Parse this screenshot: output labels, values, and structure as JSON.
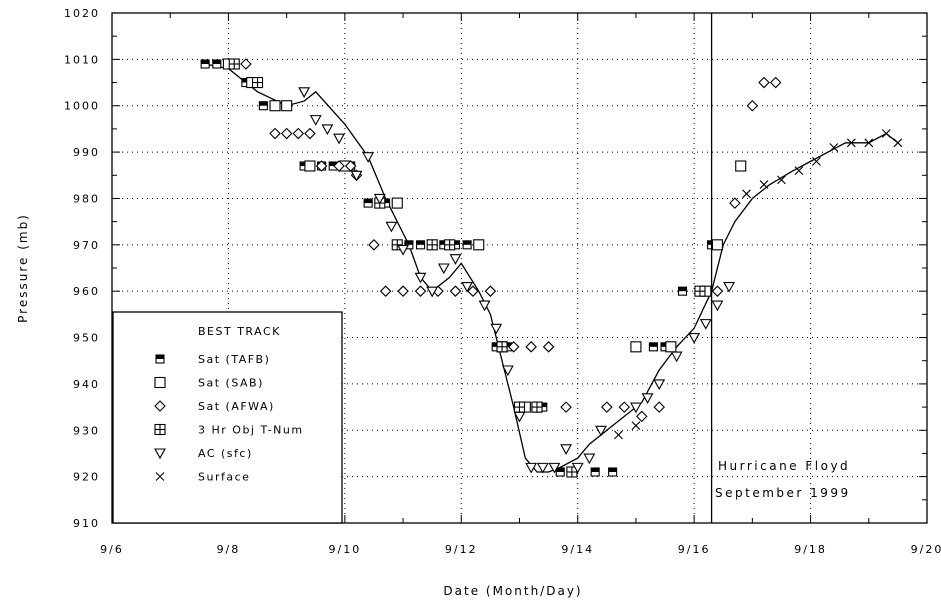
{
  "chart_data": {
    "type": "scatter",
    "title": "",
    "xlabel": "Date (Month/Day)",
    "ylabel": "Pressure (mb)",
    "x_ticks": [
      "9/6",
      "9/8",
      "9/10",
      "9/12",
      "9/14",
      "9/16",
      "9/18",
      "9/20"
    ],
    "y_ticks": [
      910,
      920,
      930,
      940,
      950,
      960,
      970,
      980,
      990,
      1000,
      1010,
      1020
    ],
    "xlim": [
      6,
      20
    ],
    "ylim": [
      910,
      1020
    ],
    "grid": true,
    "legend_position": "bottom-left",
    "legend_title": "BEST TRACK",
    "vertical_line_x": 16.3,
    "annotation": [
      "Hurricane Floyd",
      "September 1999"
    ],
    "series": [
      {
        "name": "BEST TRACK",
        "marker": "line",
        "x": [
          7.6,
          8.0,
          8.5,
          9.0,
          9.3,
          9.5,
          10.0,
          10.4,
          10.7,
          10.9,
          11.1,
          11.3,
          11.5,
          11.8,
          12.0,
          12.3,
          12.5,
          12.7,
          12.9,
          13.1,
          13.3,
          13.5,
          13.7,
          14.0,
          14.2,
          14.5,
          14.8,
          15.1,
          15.4,
          15.7,
          16.0,
          16.3,
          16.5,
          16.7,
          17.0,
          17.3,
          17.7,
          18.0,
          18.3,
          18.6,
          19.0,
          19.3,
          19.5
        ],
        "y": [
          1009,
          1008,
          1003,
          1000,
          1001,
          1003,
          996,
          989,
          980,
          975,
          970,
          963,
          960,
          963,
          966,
          960,
          955,
          945,
          935,
          924,
          921,
          921,
          922,
          924,
          927,
          930,
          933,
          936,
          943,
          948,
          952,
          960,
          970,
          975,
          980,
          983,
          986,
          988,
          990,
          992,
          992,
          994,
          992
        ]
      },
      {
        "name": "Sat (TAFB)",
        "marker": "half-square",
        "x": [
          7.6,
          7.8,
          8.0,
          8.3,
          8.6,
          9.3,
          9.6,
          9.8,
          10.1,
          10.4,
          10.7,
          10.9,
          11.1,
          11.3,
          11.5,
          11.7,
          11.9,
          12.1,
          12.3,
          12.6,
          12.8,
          13.1,
          13.4,
          13.7,
          13.9,
          14.3,
          14.6,
          15.3,
          15.5,
          15.8,
          16.1,
          16.3
        ],
        "y": [
          1009,
          1009,
          1009,
          1005,
          1000,
          987,
          987,
          987,
          987,
          979,
          979,
          979,
          970,
          970,
          970,
          970,
          970,
          970,
          970,
          948,
          948,
          935,
          935,
          921,
          921,
          921,
          921,
          948,
          948,
          960,
          960,
          970
        ]
      },
      {
        "name": "Sat (SAB)",
        "marker": "square",
        "x": [
          8.0,
          8.4,
          8.8,
          9.0,
          9.4,
          10.0,
          10.9,
          12.3,
          12.7,
          13.1,
          13.3,
          15.0,
          15.6,
          16.2,
          16.4,
          16.8
        ],
        "y": [
          1009,
          1005,
          1000,
          1000,
          987,
          987,
          979,
          970,
          948,
          935,
          935,
          948,
          948,
          960,
          970,
          987
        ]
      },
      {
        "name": "Sat (AFWA)",
        "marker": "diamond",
        "x": [
          8.3,
          8.8,
          9.0,
          9.2,
          9.4,
          9.6,
          9.9,
          10.1,
          10.2,
          10.5,
          10.7,
          11.0,
          11.3,
          11.6,
          11.9,
          12.2,
          12.5,
          12.9,
          13.2,
          13.5,
          13.8,
          14.5,
          14.8,
          15.1,
          15.4,
          16.4,
          16.7,
          17.0,
          17.2,
          17.4
        ],
        "y": [
          1009,
          994,
          994,
          994,
          994,
          987,
          987,
          987,
          985,
          970,
          960,
          960,
          960,
          960,
          960,
          960,
          960,
          948,
          948,
          948,
          935,
          935,
          935,
          933,
          935,
          960,
          979,
          1000,
          1005,
          1005
        ]
      },
      {
        "name": "3 Hr Obj T-Num",
        "marker": "plus-square",
        "x": [
          8.1,
          8.5,
          10.6,
          10.9,
          11.5,
          11.8,
          12.7,
          13.0,
          13.3,
          13.9,
          16.1
        ],
        "y": [
          1009,
          1005,
          979,
          970,
          970,
          970,
          948,
          935,
          935,
          921,
          960
        ]
      },
      {
        "name": "AC (sfc)",
        "marker": "triangle-down",
        "x": [
          9.3,
          9.5,
          9.7,
          9.9,
          10.2,
          10.4,
          10.6,
          10.8,
          11.0,
          11.3,
          11.5,
          11.7,
          11.9,
          12.1,
          12.4,
          12.6,
          12.8,
          13.0,
          13.2,
          13.4,
          13.6,
          13.8,
          14.0,
          14.2,
          14.4,
          15.0,
          15.2,
          15.4,
          15.7,
          16.0,
          16.2,
          16.4,
          16.6
        ],
        "y": [
          1003,
          997,
          995,
          993,
          985,
          989,
          980,
          974,
          969,
          963,
          960,
          965,
          967,
          961,
          957,
          952,
          943,
          933,
          922,
          922,
          922,
          926,
          922,
          924,
          930,
          935,
          937,
          940,
          946,
          950,
          953,
          957,
          961
        ]
      },
      {
        "name": "Surface",
        "marker": "x",
        "x": [
          14.7,
          15.0,
          16.9,
          17.2,
          17.5,
          17.8,
          18.1,
          18.4,
          18.7,
          19.0,
          19.3,
          19.5
        ],
        "y": [
          929,
          931,
          981,
          983,
          984,
          986,
          988,
          991,
          992,
          992,
          994,
          992
        ]
      }
    ]
  }
}
